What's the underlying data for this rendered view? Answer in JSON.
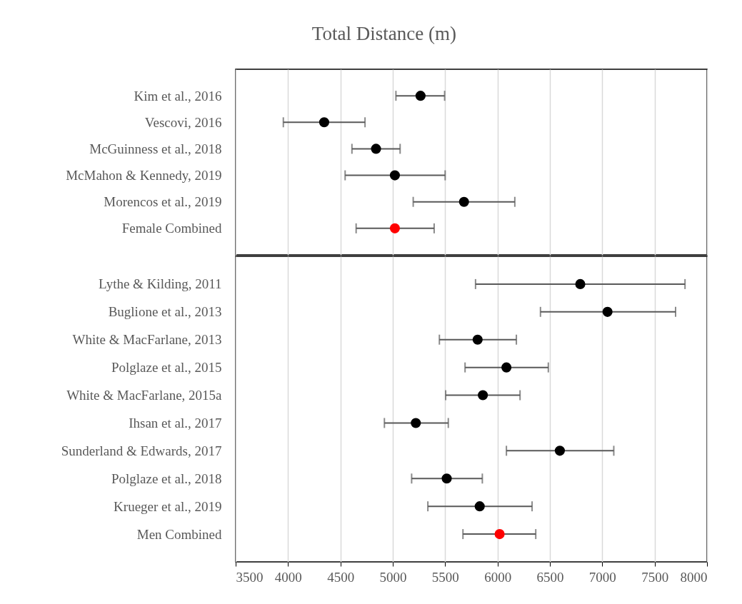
{
  "chart_data": [
    {
      "type": "scatter",
      "orientation": "horizontal",
      "title": "Total Distance (m)",
      "categories": [
        "Kim et al., 2016",
        "Vescovi, 2016",
        "McGuinness et al., 2018",
        "McMahon & Kennedy, 2019",
        "Morencos et al., 2019",
        "Female Combined"
      ],
      "values": [
        5265,
        4345,
        4840,
        5020,
        5680,
        5020
      ],
      "errors": [
        [
          5030,
          5495
        ],
        [
          3955,
          4735
        ],
        [
          4610,
          5070
        ],
        [
          4545,
          5500
        ],
        [
          5195,
          6165
        ],
        [
          4650,
          5395
        ]
      ],
      "colors": [
        "#000000",
        "#000000",
        "#000000",
        "#000000",
        "#000000",
        "#ff0000"
      ],
      "xlim": [
        3500,
        8000
      ],
      "xticks": [
        3500,
        4000,
        4500,
        5000,
        5500,
        6000,
        6500,
        7000,
        7500,
        8000
      ],
      "grid": "x",
      "marker": "circle",
      "tick_labels": "y"
    },
    {
      "type": "scatter",
      "orientation": "horizontal",
      "categories": [
        "Lythe & Kilding, 2011",
        "Buglione et al., 2013",
        "White & MacFarlane, 2013",
        "Polglaze et al., 2015",
        "White & MacFarlane, 2015a",
        "Ihsan et al., 2017",
        "Sunderland & Edwards, 2017",
        "Polglaze et al., 2018",
        "Krueger et al., 2019",
        "Men Combined"
      ],
      "values": [
        6790,
        7050,
        5810,
        6085,
        5860,
        5220,
        6595,
        5515,
        5830,
        6020
      ],
      "errors": [
        [
          5790,
          7790
        ],
        [
          6410,
          7700
        ],
        [
          5445,
          6180
        ],
        [
          5690,
          6485
        ],
        [
          5505,
          6215
        ],
        [
          4920,
          5530
        ],
        [
          6085,
          7110
        ],
        [
          5180,
          5855
        ],
        [
          5335,
          6330
        ],
        [
          5670,
          6365
        ]
      ],
      "colors": [
        "#000000",
        "#000000",
        "#000000",
        "#000000",
        "#000000",
        "#000000",
        "#000000",
        "#000000",
        "#000000",
        "#ff0000"
      ],
      "xlim": [
        3500,
        8000
      ],
      "xticks": [
        3500,
        4000,
        4500,
        5000,
        5500,
        6000,
        6500,
        7000,
        7500,
        8000
      ],
      "grid": "x",
      "marker": "circle"
    }
  ]
}
